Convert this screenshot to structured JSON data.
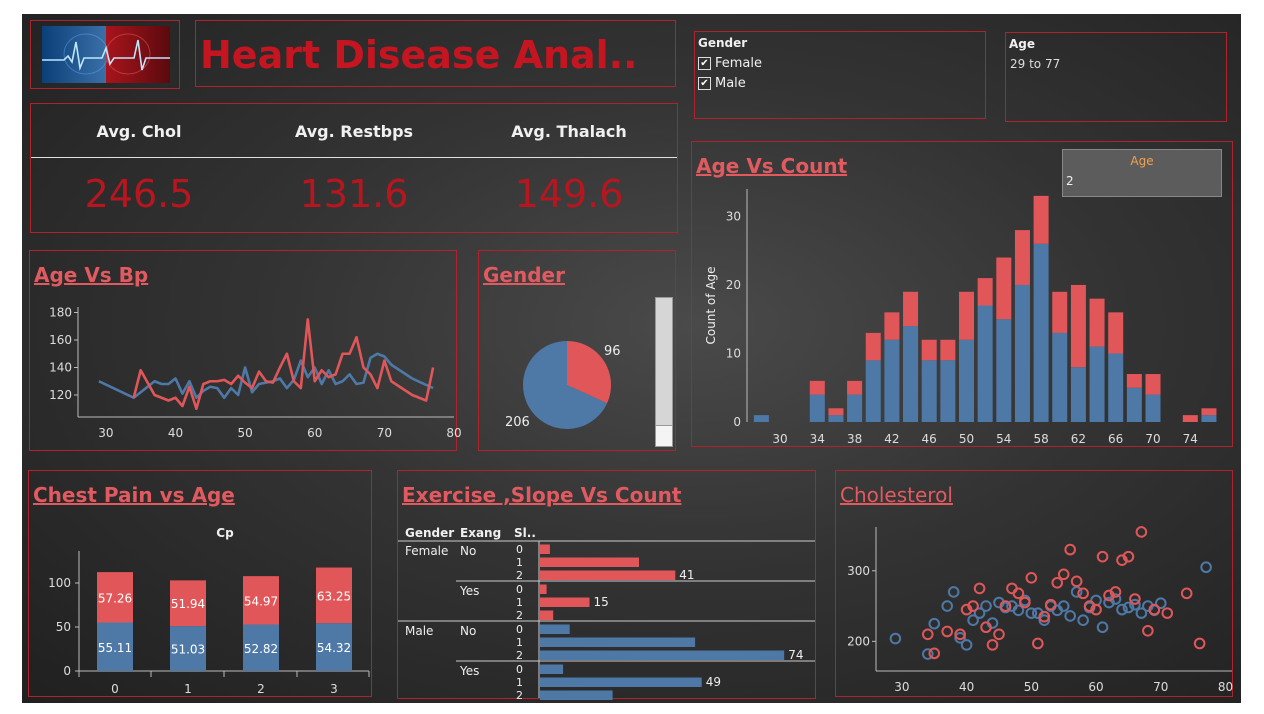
{
  "header": {
    "title": "Heart Disease Anal..",
    "logo_icon": "heart-ecg-logo-icon"
  },
  "filters": {
    "gender": {
      "title": "Gender",
      "options": [
        {
          "label": "Female",
          "checked": true
        },
        {
          "label": "Male",
          "checked": true
        }
      ]
    },
    "age": {
      "title": "Age",
      "value": "29 to 77"
    },
    "age_vs_count": {
      "title": "Age",
      "value": "2"
    }
  },
  "kpis": [
    {
      "label": "Avg. Chol",
      "value": "246.5"
    },
    {
      "label": "Avg. Restbps",
      "value": "131.6"
    },
    {
      "label": "Avg. Thalach",
      "value": "149.6"
    }
  ],
  "colors": {
    "female": "#e15759",
    "male": "#4e79a7",
    "accent": "#b8161f",
    "title": "#e05a60"
  },
  "chart_data": [
    {
      "id": "age_bp",
      "type": "line",
      "title": "Age Vs Bp",
      "xlim": [
        26,
        80
      ],
      "ylim": [
        104,
        184
      ],
      "xticks": [
        30,
        40,
        50,
        60,
        70,
        80
      ],
      "yticks": [
        120,
        140,
        160,
        180
      ],
      "series": [
        {
          "color": "#4e79a7",
          "x": [
            29,
            34,
            37,
            38,
            39,
            40,
            41,
            42,
            43,
            44,
            45,
            46,
            47,
            48,
            49,
            50,
            51,
            52,
            53,
            54,
            55,
            56,
            57,
            58,
            59,
            60,
            61,
            62,
            63,
            64,
            65,
            66,
            67,
            68,
            69,
            70,
            71,
            74,
            77
          ],
          "y": [
            130,
            118,
            130,
            128,
            128,
            132,
            121,
            130,
            118,
            123,
            126,
            125,
            118,
            125,
            120,
            140,
            122,
            128,
            129,
            130,
            132,
            125,
            131,
            145,
            133,
            140,
            128,
            138,
            128,
            130,
            135,
            128,
            129,
            147,
            150,
            148,
            142,
            132,
            125
          ]
        },
        {
          "color": "#e15759",
          "x": [
            34,
            35,
            37,
            38,
            39,
            40,
            41,
            42,
            43,
            44,
            45,
            46,
            47,
            48,
            49,
            50,
            51,
            52,
            53,
            54,
            55,
            56,
            57,
            58,
            59,
            60,
            61,
            62,
            63,
            64,
            65,
            66,
            67,
            68,
            69,
            70,
            71,
            74,
            76,
            77
          ],
          "y": [
            118,
            138,
            120,
            118,
            116,
            118,
            112,
            126,
            110,
            128,
            130,
            130,
            131,
            128,
            134,
            129,
            125,
            137,
            130,
            129,
            140,
            150,
            130,
            125,
            175,
            130,
            138,
            133,
            135,
            150,
            150,
            162,
            140,
            135,
            125,
            145,
            130,
            120,
            116,
            140
          ]
        }
      ]
    },
    {
      "id": "gender_pie",
      "type": "pie",
      "title": "Gender",
      "series": [
        {
          "name": "Female",
          "value": 96,
          "color": "#e15759"
        },
        {
          "name": "Male",
          "value": 206,
          "color": "#4e79a7"
        }
      ]
    },
    {
      "id": "age_count",
      "type": "bar",
      "title": "Age Vs Count",
      "ylabel": "Count of Age",
      "ylim": [
        0,
        34
      ],
      "yticks": [
        0,
        10,
        20,
        30
      ],
      "xticks": [
        "30",
        "34",
        "38",
        "42",
        "46",
        "50",
        "54",
        "58",
        "62",
        "66",
        "70",
        "74"
      ],
      "categories": [
        29,
        34,
        35,
        37,
        38,
        39,
        40,
        41,
        42,
        43,
        44,
        45,
        46,
        47,
        48,
        49,
        50,
        51,
        52,
        53,
        54,
        55,
        56,
        57,
        58,
        59,
        60,
        61,
        62,
        63,
        64,
        65,
        66,
        67,
        68,
        69,
        70,
        71,
        74,
        76,
        77
      ],
      "bins": [
        {
          "age": 28,
          "male": 1,
          "female": 0
        },
        {
          "age": 30,
          "male": 0,
          "female": 0
        },
        {
          "age": 32,
          "male": 0,
          "female": 0
        },
        {
          "age": 34,
          "male": 4,
          "female": 2
        },
        {
          "age": 36,
          "male": 1,
          "female": 1
        },
        {
          "age": 38,
          "male": 4,
          "female": 2
        },
        {
          "age": 40,
          "male": 9,
          "female": 4
        },
        {
          "age": 42,
          "male": 12,
          "female": 4
        },
        {
          "age": 44,
          "male": 14,
          "female": 5
        },
        {
          "age": 46,
          "male": 9,
          "female": 3
        },
        {
          "age": 48,
          "male": 9,
          "female": 3
        },
        {
          "age": 50,
          "male": 12,
          "female": 7
        },
        {
          "age": 52,
          "male": 17,
          "female": 4
        },
        {
          "age": 54,
          "male": 15,
          "female": 9
        },
        {
          "age": 56,
          "male": 20,
          "female": 8
        },
        {
          "age": 58,
          "male": 26,
          "female": 7
        },
        {
          "age": 60,
          "male": 13,
          "female": 6
        },
        {
          "age": 62,
          "male": 8,
          "female": 12
        },
        {
          "age": 64,
          "male": 11,
          "female": 7
        },
        {
          "age": 66,
          "male": 10,
          "female": 6
        },
        {
          "age": 68,
          "male": 5,
          "female": 2
        },
        {
          "age": 70,
          "male": 4,
          "female": 3
        },
        {
          "age": 72,
          "male": 0,
          "female": 0
        },
        {
          "age": 74,
          "male": 0,
          "female": 1
        },
        {
          "age": 76,
          "male": 1,
          "female": 1
        }
      ]
    },
    {
      "id": "chest_pain",
      "type": "bar",
      "title": "Chest Pain vs Age",
      "header": "Cp",
      "categories": [
        "0",
        "1",
        "2",
        "3"
      ],
      "ylim": [
        0,
        125
      ],
      "yticks": [
        0,
        50,
        100
      ],
      "series": [
        {
          "name": "Male",
          "color": "#4e79a7",
          "values": [
            55.11,
            51.03,
            52.82,
            54.32
          ],
          "labels": [
            "55.11",
            "51.03",
            "52.82",
            "54.32"
          ]
        },
        {
          "name": "Female",
          "color": "#e15759",
          "values": [
            57.26,
            51.94,
            54.97,
            63.25
          ],
          "labels": [
            "57.26",
            "51.94",
            "54.97",
            "63.25"
          ]
        }
      ]
    },
    {
      "id": "exercise_slope",
      "type": "bar",
      "title": "Exercise ,Slope Vs Count",
      "columns": [
        "Gender",
        "Exang",
        "Sl.."
      ],
      "max": 80,
      "groups": [
        {
          "gender": "Female",
          "exang": "No",
          "color": "#e15759",
          "rows": [
            {
              "slope": "0",
              "value": 3
            },
            {
              "slope": "1",
              "value": 30
            },
            {
              "slope": "2",
              "value": 41,
              "label": "41"
            }
          ]
        },
        {
          "gender": "",
          "exang": "Yes",
          "color": "#e15759",
          "rows": [
            {
              "slope": "0",
              "value": 2
            },
            {
              "slope": "1",
              "value": 15,
              "label": "15"
            },
            {
              "slope": "2",
              "value": 4
            }
          ]
        },
        {
          "gender": "Male",
          "exang": "No",
          "color": "#4e79a7",
          "rows": [
            {
              "slope": "0",
              "value": 9
            },
            {
              "slope": "1",
              "value": 47
            },
            {
              "slope": "2",
              "value": 74,
              "label": "74"
            }
          ]
        },
        {
          "gender": "",
          "exang": "Yes",
          "color": "#4e79a7",
          "rows": [
            {
              "slope": "0",
              "value": 7
            },
            {
              "slope": "1",
              "value": 49,
              "label": "49"
            },
            {
              "slope": "2",
              "value": 22
            }
          ]
        }
      ]
    },
    {
      "id": "cholesterol",
      "type": "scatter",
      "title": "Cholesterol",
      "xlim": [
        26,
        81
      ],
      "ylim": [
        158,
        362
      ],
      "xticks": [
        30,
        40,
        50,
        60,
        70,
        80
      ],
      "yticks": [
        200,
        300
      ],
      "series": [
        {
          "name": "Male",
          "color": "#4e79a7",
          "points": [
            [
              29,
              204
            ],
            [
              34,
              182
            ],
            [
              35,
              225
            ],
            [
              37,
              250
            ],
            [
              38,
              270
            ],
            [
              39,
              205
            ],
            [
              40,
              195
            ],
            [
              41,
              230
            ],
            [
              42,
              240
            ],
            [
              43,
              250
            ],
            [
              44,
              226
            ],
            [
              45,
              255
            ],
            [
              46,
              248
            ],
            [
              47,
              250
            ],
            [
              48,
              244
            ],
            [
              49,
              258
            ],
            [
              50,
              240
            ],
            [
              51,
              240
            ],
            [
              52,
              230
            ],
            [
              53,
              250
            ],
            [
              54,
              244
            ],
            [
              55,
              250
            ],
            [
              56,
              236
            ],
            [
              57,
              270
            ],
            [
              58,
              230
            ],
            [
              59,
              248
            ],
            [
              60,
              258
            ],
            [
              61,
              220
            ],
            [
              62,
              255
            ],
            [
              63,
              260
            ],
            [
              64,
              245
            ],
            [
              65,
              248
            ],
            [
              66,
              252
            ],
            [
              67,
              240
            ],
            [
              68,
              250
            ],
            [
              69,
              244
            ],
            [
              70,
              254
            ],
            [
              77,
              305
            ]
          ]
        },
        {
          "name": "Female",
          "color": "#e15759",
          "points": [
            [
              34,
              210
            ],
            [
              35,
              183
            ],
            [
              37,
              214
            ],
            [
              39,
              210
            ],
            [
              40,
              245
            ],
            [
              41,
              250
            ],
            [
              42,
              275
            ],
            [
              43,
              220
            ],
            [
              44,
              195
            ],
            [
              45,
              210
            ],
            [
              46,
              250
            ],
            [
              47,
              275
            ],
            [
              48,
              268
            ],
            [
              49,
              255
            ],
            [
              50,
              290
            ],
            [
              51,
              197
            ],
            [
              52,
              235
            ],
            [
              53,
              252
            ],
            [
              54,
              283
            ],
            [
              55,
              295
            ],
            [
              56,
              330
            ],
            [
              57,
              285
            ],
            [
              58,
              268
            ],
            [
              59,
              250
            ],
            [
              60,
              245
            ],
            [
              61,
              320
            ],
            [
              62,
              265
            ],
            [
              63,
              270
            ],
            [
              64,
              315
            ],
            [
              65,
              320
            ],
            [
              66,
              260
            ],
            [
              67,
              355
            ],
            [
              68,
              215
            ],
            [
              69,
              245
            ],
            [
              71,
              240
            ],
            [
              74,
              268
            ],
            [
              76,
              197
            ]
          ]
        }
      ]
    }
  ]
}
